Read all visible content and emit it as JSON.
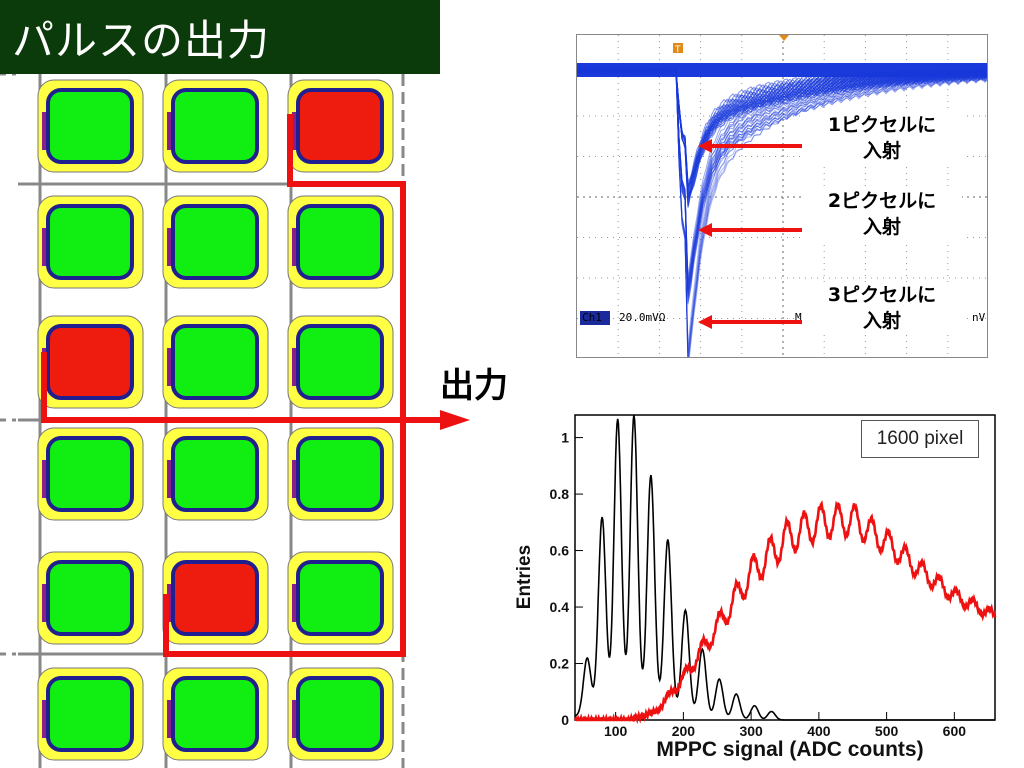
{
  "slide": {
    "title": "パルスの出力",
    "output_label": "出力"
  },
  "pixel_grid": {
    "rows": 6,
    "cols": 3,
    "fired": [
      [
        0,
        2
      ],
      [
        2,
        0
      ],
      [
        4,
        1
      ]
    ],
    "colors": {
      "pixel_on": "#ee1c0e",
      "pixel_off": "#11ee11",
      "pixel_frame": "#ffff44",
      "pixel_border": "#1f1f8f",
      "signal_line": "#ee1111",
      "bus_line": "#888888"
    }
  },
  "oscilloscope": {
    "channel_label": "Ch1",
    "scale_text": "20.0mVΩ",
    "partial_text_1": "M",
    "partial_text_2": "nV",
    "trigger_marker": "T",
    "callouts": [
      {
        "line1": "1ピクセルに",
        "line2": "入射"
      },
      {
        "line1": "2ピクセルに",
        "line2": "入射"
      },
      {
        "line1": "3ピクセルに",
        "line2": "入射"
      }
    ],
    "trace_color": "#1a3adb"
  },
  "chart_data": {
    "type": "line",
    "title": "",
    "legend": "1600 pixel",
    "xlabel": "MPPC signal (ADC counts)",
    "ylabel": "Entries",
    "xlim": [
      40,
      660
    ],
    "ylim": [
      0,
      1.08
    ],
    "x_ticks": [
      100,
      200,
      300,
      400,
      500,
      600
    ],
    "y_ticks": [
      0,
      0.2,
      0.4,
      0.6,
      0.8,
      1
    ],
    "y_tick_labels": [
      "0",
      "0.2",
      "0.4",
      "0.6",
      "0.8",
      "1"
    ],
    "series": [
      {
        "color": "#000000",
        "peaks": [
          {
            "x": 58,
            "y": 0.2
          },
          {
            "x": 80,
            "y": 0.69
          },
          {
            "x": 103,
            "y": 1.03
          },
          {
            "x": 127,
            "y": 1.04
          },
          {
            "x": 152,
            "y": 0.83
          },
          {
            "x": 177,
            "y": 0.61
          },
          {
            "x": 203,
            "y": 0.37
          },
          {
            "x": 228,
            "y": 0.24
          },
          {
            "x": 253,
            "y": 0.14
          },
          {
            "x": 278,
            "y": 0.09
          },
          {
            "x": 305,
            "y": 0.05
          },
          {
            "x": 330,
            "y": 0.03
          }
        ]
      },
      {
        "color": "#ee1111",
        "envelope": [
          {
            "x": 120,
            "y": 0.0
          },
          {
            "x": 160,
            "y": 0.03
          },
          {
            "x": 200,
            "y": 0.15
          },
          {
            "x": 250,
            "y": 0.33
          },
          {
            "x": 300,
            "y": 0.52
          },
          {
            "x": 350,
            "y": 0.64
          },
          {
            "x": 400,
            "y": 0.7
          },
          {
            "x": 450,
            "y": 0.71
          },
          {
            "x": 500,
            "y": 0.63
          },
          {
            "x": 550,
            "y": 0.53
          },
          {
            "x": 600,
            "y": 0.44
          },
          {
            "x": 650,
            "y": 0.38
          },
          {
            "x": 660,
            "y": 0.37
          }
        ],
        "peak_spacing": 25
      }
    ]
  }
}
